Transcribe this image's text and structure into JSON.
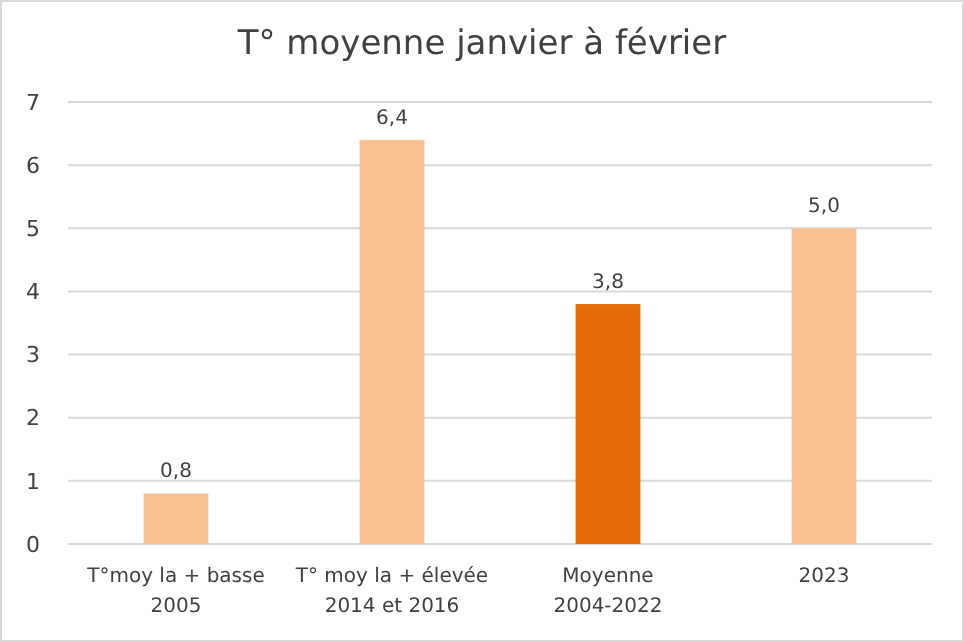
{
  "chart_data": {
    "type": "bar",
    "title": "T° moyenne janvier à février",
    "categories": [
      "T°moy la + basse\n2005",
      "T° moy la + élevée\n2014 et 2016",
      "Moyenne\n2004-2022",
      "2023"
    ],
    "values": [
      0.8,
      6.4,
      3.8,
      5.0
    ],
    "colors": [
      "#f8c192",
      "#f8c192",
      "#e46c0a",
      "#f8c192"
    ],
    "value_labels": [
      "0,8",
      "6,4",
      "3,8",
      "5,0"
    ],
    "ylim": [
      0,
      7
    ],
    "yticks": [
      0,
      1,
      2,
      3,
      4,
      5,
      6,
      7
    ],
    "grid": "y"
  }
}
